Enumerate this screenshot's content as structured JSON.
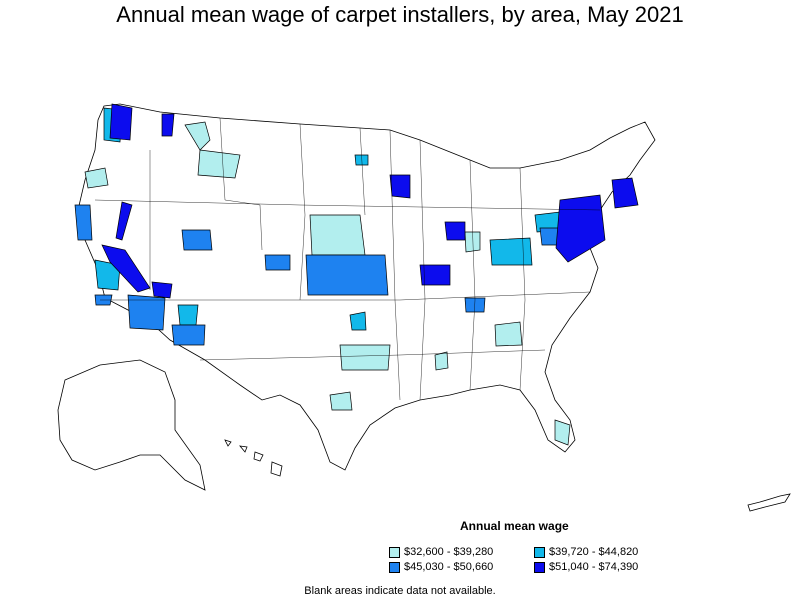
{
  "title": "Annual mean wage of carpet installers, by area, May 2021",
  "legend": {
    "title": "Annual mean wage",
    "items": [
      {
        "label": "$32,600 - $39,280",
        "color": "#b2eeee"
      },
      {
        "label": "$39,720 - $44,820",
        "color": "#12b8ea"
      },
      {
        "label": "$45,030 - $50,660",
        "color": "#1e82f0"
      },
      {
        "label": "$51,040 - $74,390",
        "color": "#0c0cee"
      }
    ]
  },
  "footnote": "Blank areas indicate data not available.",
  "colors": {
    "background": "#ffffff",
    "outline": "#000000"
  }
}
